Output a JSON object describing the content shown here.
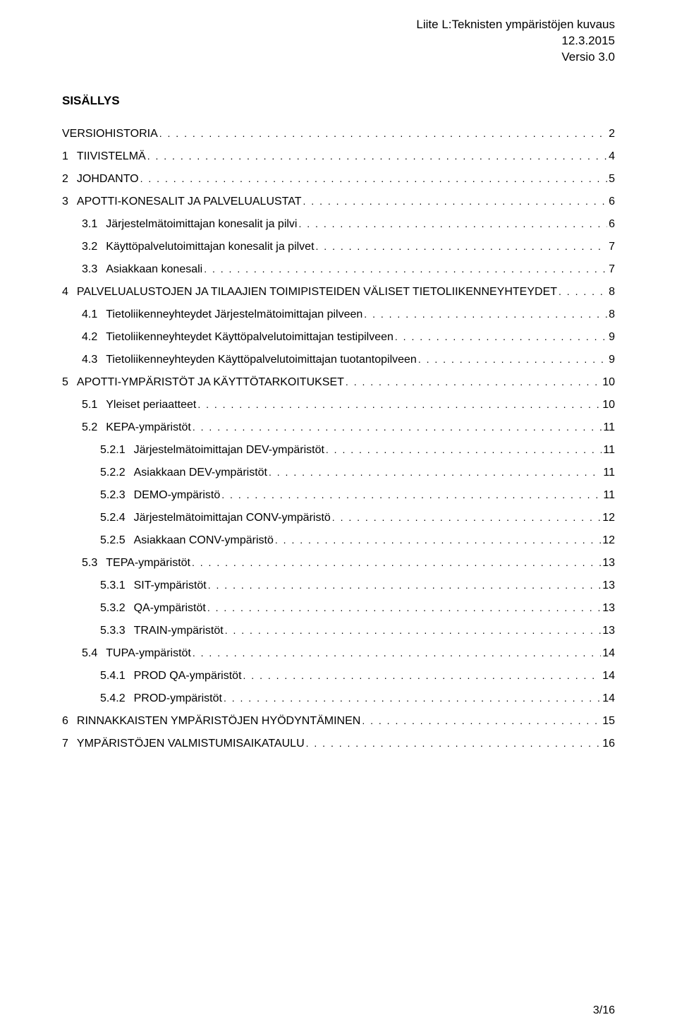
{
  "header": {
    "line1": "Liite L:Teknisten ympäristöjen kuvaus",
    "line2": "12.3.2015",
    "line3": "Versio 3.0"
  },
  "toc_title": "SISÄLLYS",
  "footer": "3/16",
  "entries": [
    {
      "lvl": 0,
      "num": "",
      "title": "VERSIOHISTORIA",
      "page": "2"
    },
    {
      "lvl": 0,
      "num": "1",
      "title": "TIIVISTELMÄ",
      "page": "4"
    },
    {
      "lvl": 0,
      "num": "2",
      "title": "JOHDANTO",
      "page": "5"
    },
    {
      "lvl": 0,
      "num": "3",
      "title": "APOTTI-KONESALIT JA PALVELUALUSTAT",
      "page": "6"
    },
    {
      "lvl": 1,
      "num": "3.1",
      "title": "Järjestelmätoimittajan konesalit ja pilvi",
      "page": "6"
    },
    {
      "lvl": 1,
      "num": "3.2",
      "title": "Käyttöpalvelutoimittajan konesalit ja pilvet",
      "page": "7"
    },
    {
      "lvl": 1,
      "num": "3.3",
      "title": "Asiakkaan konesali",
      "page": "7"
    },
    {
      "lvl": 0,
      "num": "4",
      "title": "PALVELUALUSTOJEN JA TILAAJIEN TOIMIPISTEIDEN VÄLISET TIETOLIIKENNEYHTEYDET",
      "page": "8"
    },
    {
      "lvl": 1,
      "num": "4.1",
      "title": "Tietoliikenneyhteydet Järjestelmätoimittajan pilveen",
      "page": "8"
    },
    {
      "lvl": 1,
      "num": "4.2",
      "title": "Tietoliikenneyhteydet Käyttöpalvelutoimittajan testipilveen",
      "page": "9"
    },
    {
      "lvl": 1,
      "num": "4.3",
      "title": "Tietoliikenneyhteyden Käyttöpalvelutoimittajan tuotantopilveen",
      "page": "9"
    },
    {
      "lvl": 0,
      "num": "5",
      "title": "APOTTI-YMPÄRISTÖT JA KÄYTTÖTARKOITUKSET",
      "page": "10"
    },
    {
      "lvl": 1,
      "num": "5.1",
      "title": "Yleiset periaatteet",
      "page": "10"
    },
    {
      "lvl": 1,
      "num": "5.2",
      "title": "KEPA-ympäristöt",
      "page": "11"
    },
    {
      "lvl": 2,
      "num": "5.2.1",
      "title": "Järjestelmätoimittajan DEV-ympäristöt",
      "page": "11"
    },
    {
      "lvl": 2,
      "num": "5.2.2",
      "title": "Asiakkaan DEV-ympäristöt",
      "page": "11"
    },
    {
      "lvl": 2,
      "num": "5.2.3",
      "title": "DEMO-ympäristö",
      "page": "11"
    },
    {
      "lvl": 2,
      "num": "5.2.4",
      "title": "Järjestelmätoimittajan CONV-ympäristö",
      "page": "12"
    },
    {
      "lvl": 2,
      "num": "5.2.5",
      "title": "Asiakkaan CONV-ympäristö",
      "page": "12"
    },
    {
      "lvl": 1,
      "num": "5.3",
      "title": "TEPA-ympäristöt",
      "page": "13"
    },
    {
      "lvl": 2,
      "num": "5.3.1",
      "title": "SIT-ympäristöt",
      "page": "13"
    },
    {
      "lvl": 2,
      "num": "5.3.2",
      "title": "QA-ympäristöt",
      "page": "13"
    },
    {
      "lvl": 2,
      "num": "5.3.3",
      "title": "TRAIN-ympäristöt",
      "page": "13"
    },
    {
      "lvl": 1,
      "num": "5.4",
      "title": "TUPA-ympäristöt",
      "page": "14"
    },
    {
      "lvl": 2,
      "num": "5.4.1",
      "title": "PROD QA-ympäristöt",
      "page": "14"
    },
    {
      "lvl": 2,
      "num": "5.4.2",
      "title": "PROD-ympäristöt",
      "page": "14"
    },
    {
      "lvl": 0,
      "num": "6",
      "title": "RINNAKKAISTEN YMPÄRISTÖJEN HYÖDYNTÄMINEN",
      "page": "15"
    },
    {
      "lvl": 0,
      "num": "7",
      "title": "YMPÄRISTÖJEN VALMISTUMISAIKATAULU",
      "page": "16"
    }
  ]
}
